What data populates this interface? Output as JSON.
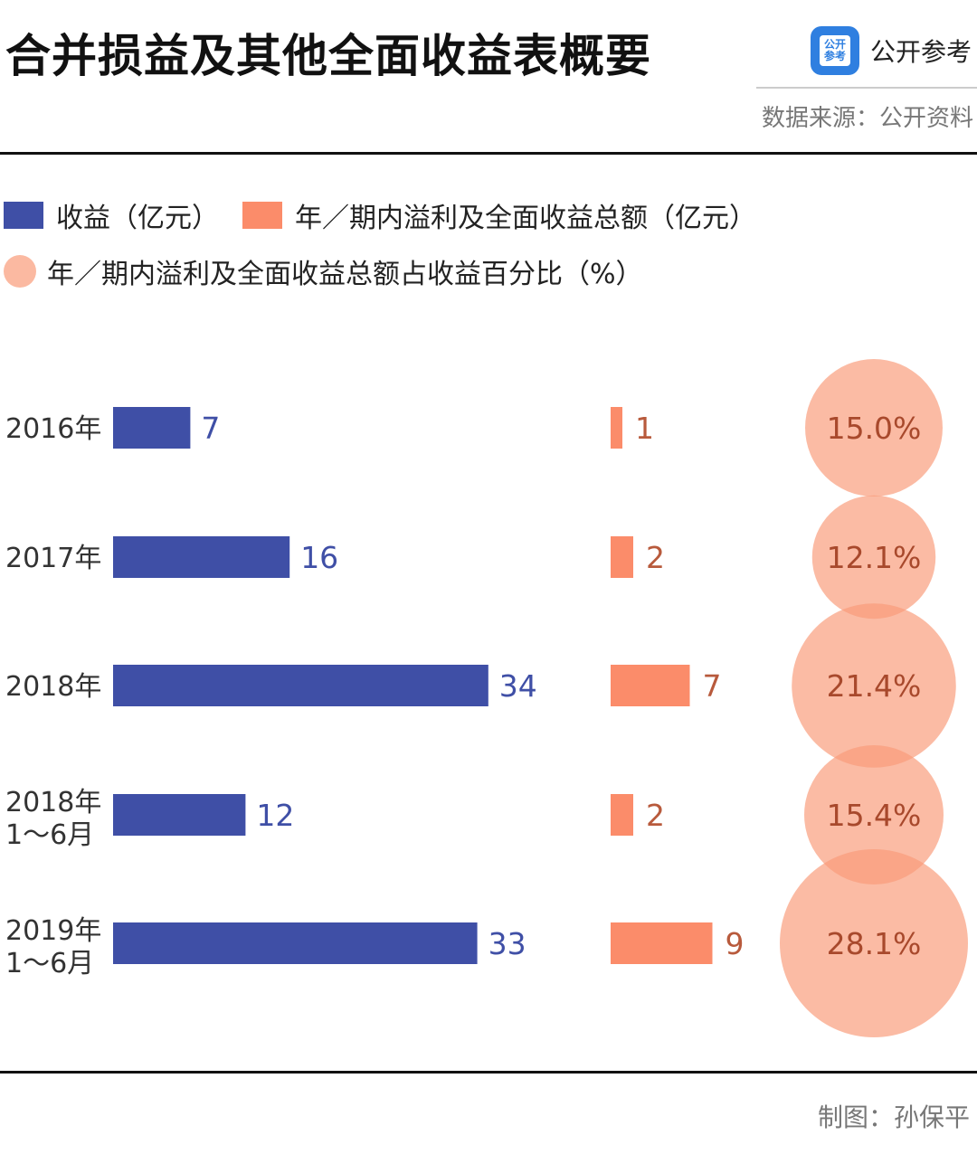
{
  "header": {
    "title": "合并损益及其他全面收益表概要",
    "brand_logo_text": "公开参考",
    "brand_name": "公开参考",
    "source": "数据来源：公开资料"
  },
  "colors": {
    "revenue": "#3f4fa6",
    "profit": "#fb8c6a",
    "circle": "#f99b79",
    "revenue_label": "#3f4fa6",
    "profit_label": "#b85a3c",
    "pct_label": "#a8492c"
  },
  "legend": {
    "revenue": "收益（亿元）",
    "profit": "年／期内溢利及全面收益总额（亿元）",
    "ratio": "年／期内溢利及全面收益总额占收益百分比（%）"
  },
  "chart_data": {
    "type": "bar",
    "title": "合并损益及其他全面收益表概要",
    "categories": [
      [
        "2016年"
      ],
      [
        "2017年"
      ],
      [
        "2018年"
      ],
      [
        "2018年",
        "1～6月"
      ],
      [
        "2019年",
        "1～6月"
      ]
    ],
    "series": [
      {
        "name": "收益（亿元）",
        "values": [
          7,
          16,
          34,
          12,
          33
        ],
        "labels": [
          "7",
          "16",
          "34",
          "12",
          "33"
        ]
      },
      {
        "name": "年／期内溢利及全面收益总额（亿元）",
        "values": [
          1,
          2,
          7,
          2,
          9
        ],
        "labels": [
          "1",
          "2",
          "7",
          "2",
          "9"
        ]
      },
      {
        "name": "年／期内溢利及全面收益总额占收益百分比（%）",
        "values": [
          15.0,
          12.1,
          21.4,
          15.4,
          28.1
        ],
        "labels": [
          "15.0%",
          "12.1%",
          "21.4%",
          "15.4%",
          "28.1%"
        ]
      }
    ]
  },
  "footer": {
    "credit": "制图：孙保平"
  }
}
